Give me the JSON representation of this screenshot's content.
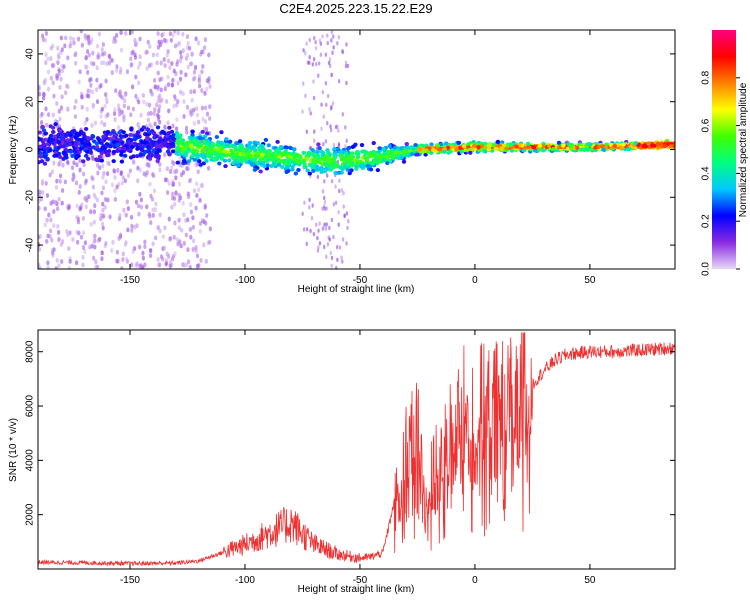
{
  "figure": {
    "title": "C2E4.2025.223.15.22.E29"
  },
  "chart_data": [
    {
      "type": "heatmap",
      "xlabel": "Height of straight line (km)",
      "ylabel": "Frequency (Hz)",
      "xlim": [
        -190,
        87
      ],
      "ylim": [
        -50,
        50
      ],
      "x_ticks": [
        -150,
        -100,
        -50,
        0,
        50
      ],
      "y_ticks": [
        -40,
        -20,
        0,
        20,
        40
      ],
      "colorbar": {
        "label": "Normalized spectral amplitude",
        "range": [
          0,
          1
        ],
        "ticks": [
          "0.0",
          "0.2",
          "0.4",
          "0.6",
          "0.8"
        ],
        "colormap": [
          "#e8d8f8",
          "#8a2be2",
          "#0000ff",
          "#00c8ff",
          "#00ff80",
          "#40ff00",
          "#ffff00",
          "#ff8000",
          "#ff0000",
          "#ff0080"
        ]
      },
      "description_points": [
        {
          "x": -190,
          "f_center": 2,
          "f_spread": 8
        },
        {
          "x": -130,
          "f_center": 2,
          "f_spread": 7
        },
        {
          "x": -100,
          "f_center": -2,
          "f_spread": 6
        },
        {
          "x": -60,
          "f_center": -5,
          "f_spread": 6
        },
        {
          "x": -40,
          "f_center": -3,
          "f_spread": 5
        },
        {
          "x": -25,
          "f_center": 0,
          "f_spread": 2
        },
        {
          "x": 0,
          "f_center": 1,
          "f_spread": 2
        },
        {
          "x": 50,
          "f_center": 1,
          "f_spread": 1.5
        },
        {
          "x": 85,
          "f_center": 2,
          "f_spread": 1.5
        }
      ]
    },
    {
      "type": "line",
      "xlabel": "Height of straight line (km)",
      "ylabel": "SNR (10 * v/v)",
      "xlim": [
        -190,
        87
      ],
      "ylim": [
        0,
        8800
      ],
      "x_ticks": [
        -150,
        -100,
        -50,
        0,
        50
      ],
      "y_ticks": [
        2000,
        4000,
        6000,
        8000
      ],
      "series": [
        {
          "color": "#f03030",
          "x": [
            -190,
            -170,
            -150,
            -130,
            -120,
            -110,
            -100,
            -90,
            -80,
            -70,
            -60,
            -50,
            -45,
            -40,
            -35,
            -30,
            -25,
            -20,
            -15,
            -10,
            -5,
            0,
            5,
            10,
            15,
            20,
            25,
            30,
            35,
            40,
            50,
            60,
            70,
            80,
            87
          ],
          "y": [
            250,
            230,
            200,
            220,
            300,
            600,
            900,
            1300,
            1700,
            900,
            550,
            400,
            450,
            600,
            2500,
            4000,
            4500,
            3000,
            3700,
            4800,
            5300,
            5600,
            5400,
            5500,
            5700,
            6300,
            6800,
            7300,
            7700,
            7900,
            8000,
            8000,
            8050,
            8100,
            8150
          ]
        }
      ]
    }
  ]
}
